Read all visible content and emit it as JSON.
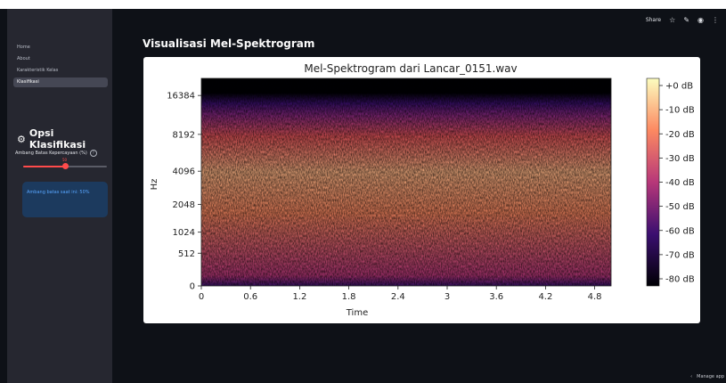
{
  "toolbar": {
    "share_label": "Share",
    "star_icon": "star-icon",
    "edit_icon": "pencil-icon",
    "github_icon": "github-icon",
    "menu_icon": "more-vertical-icon"
  },
  "sidebar": {
    "nav_items": [
      {
        "label": "Home",
        "active": false
      },
      {
        "label": "About",
        "active": false
      },
      {
        "label": "Karakteristik Kelas",
        "active": false
      },
      {
        "label": "Klasifikasi",
        "active": true
      }
    ],
    "section_title": "Opsi Klasifikasi",
    "section_icon": "gear-icon",
    "slider": {
      "label": "Ambang Batas Kepercayaan (%)",
      "value": 50,
      "min": 0,
      "max": 100,
      "accent": "#ff4b4b"
    },
    "info_text": "Ambang batas saat ini: 50%"
  },
  "main": {
    "page_title": "Visualisasi Mel-Spektrogram"
  },
  "chart_data": {
    "type": "heatmap",
    "title": "Mel-Spektrogram dari Lancar_0151.wav",
    "xlabel": "Time",
    "ylabel": "Hz",
    "x_ticks": [
      "0",
      "0.6",
      "1.2",
      "1.8",
      "2.4",
      "3",
      "3.6",
      "4.2",
      "4.8"
    ],
    "x_tick_values": [
      0,
      0.6,
      1.2,
      1.8,
      2.4,
      3,
      3.6,
      4.2,
      4.8
    ],
    "xlim": [
      0,
      5.0
    ],
    "y_scale": "mel",
    "y_ticks": [
      "0",
      "512",
      "1024",
      "2048",
      "4096",
      "8192",
      "16384"
    ],
    "y_tick_values": [
      0,
      512,
      1024,
      2048,
      4096,
      8192,
      16384
    ],
    "colormap": "magma",
    "colorbar": {
      "ticks": [
        "+0 dB",
        "-10 dB",
        "-20 dB",
        "-30 dB",
        "-40 dB",
        "-50 dB",
        "-60 dB",
        "-70 dB",
        "-80 dB"
      ],
      "range": [
        -80,
        0
      ]
    },
    "footer_label": "Manage app"
  }
}
